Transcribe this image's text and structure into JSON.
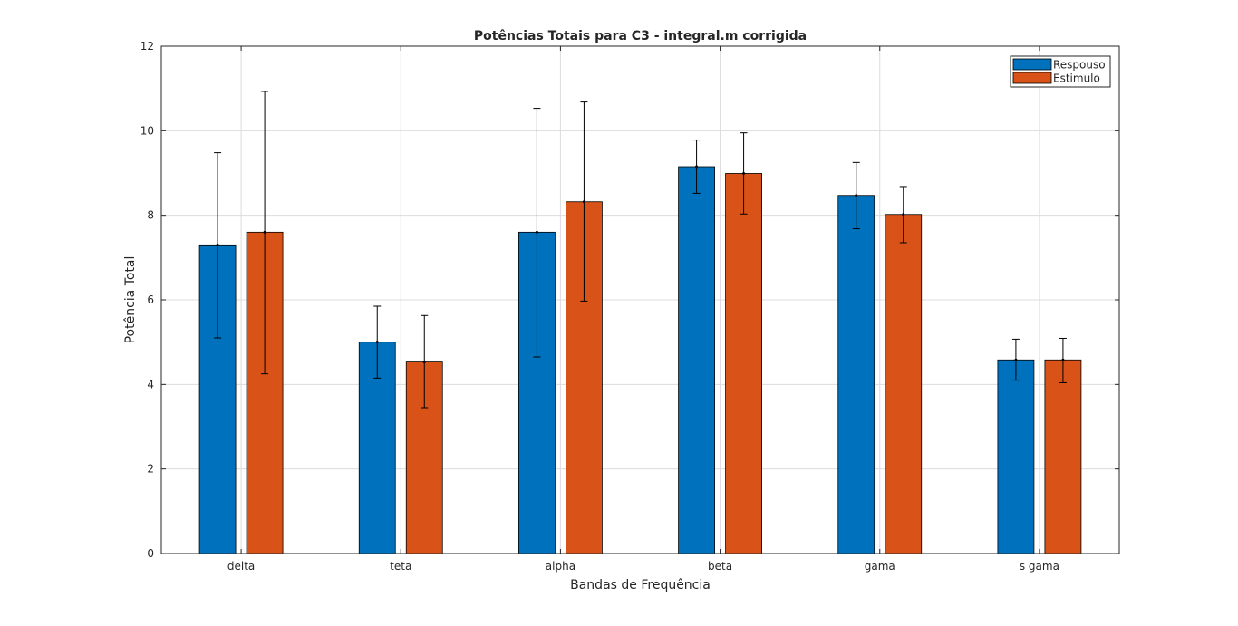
{
  "chart_data": {
    "type": "bar",
    "title": "Potências Totais para C3 - integral.m corrigida",
    "xlabel": "Bandas de Frequência",
    "ylabel": "Potência Total",
    "categories": [
      "delta",
      "teta",
      "alpha",
      "beta",
      "gama",
      "s gama"
    ],
    "ylim": [
      0,
      12
    ],
    "yticks": [
      0,
      2,
      4,
      6,
      8,
      10,
      12
    ],
    "grid": true,
    "legend_position": "top-right",
    "series": [
      {
        "name": "Respouso",
        "color": "#0072BD",
        "values": [
          7.3,
          5.0,
          7.6,
          9.15,
          8.47,
          4.58
        ],
        "error_low": [
          5.1,
          4.15,
          4.65,
          8.52,
          7.68,
          4.1
        ],
        "error_high": [
          9.48,
          5.85,
          10.53,
          9.78,
          9.25,
          5.07
        ]
      },
      {
        "name": "Estimulo",
        "color": "#D95319",
        "values": [
          7.6,
          4.53,
          8.32,
          8.99,
          8.02,
          4.58
        ],
        "error_low": [
          4.25,
          3.45,
          5.97,
          8.03,
          7.35,
          4.04
        ],
        "error_high": [
          10.93,
          5.63,
          10.68,
          9.95,
          8.68,
          5.09
        ]
      }
    ]
  }
}
